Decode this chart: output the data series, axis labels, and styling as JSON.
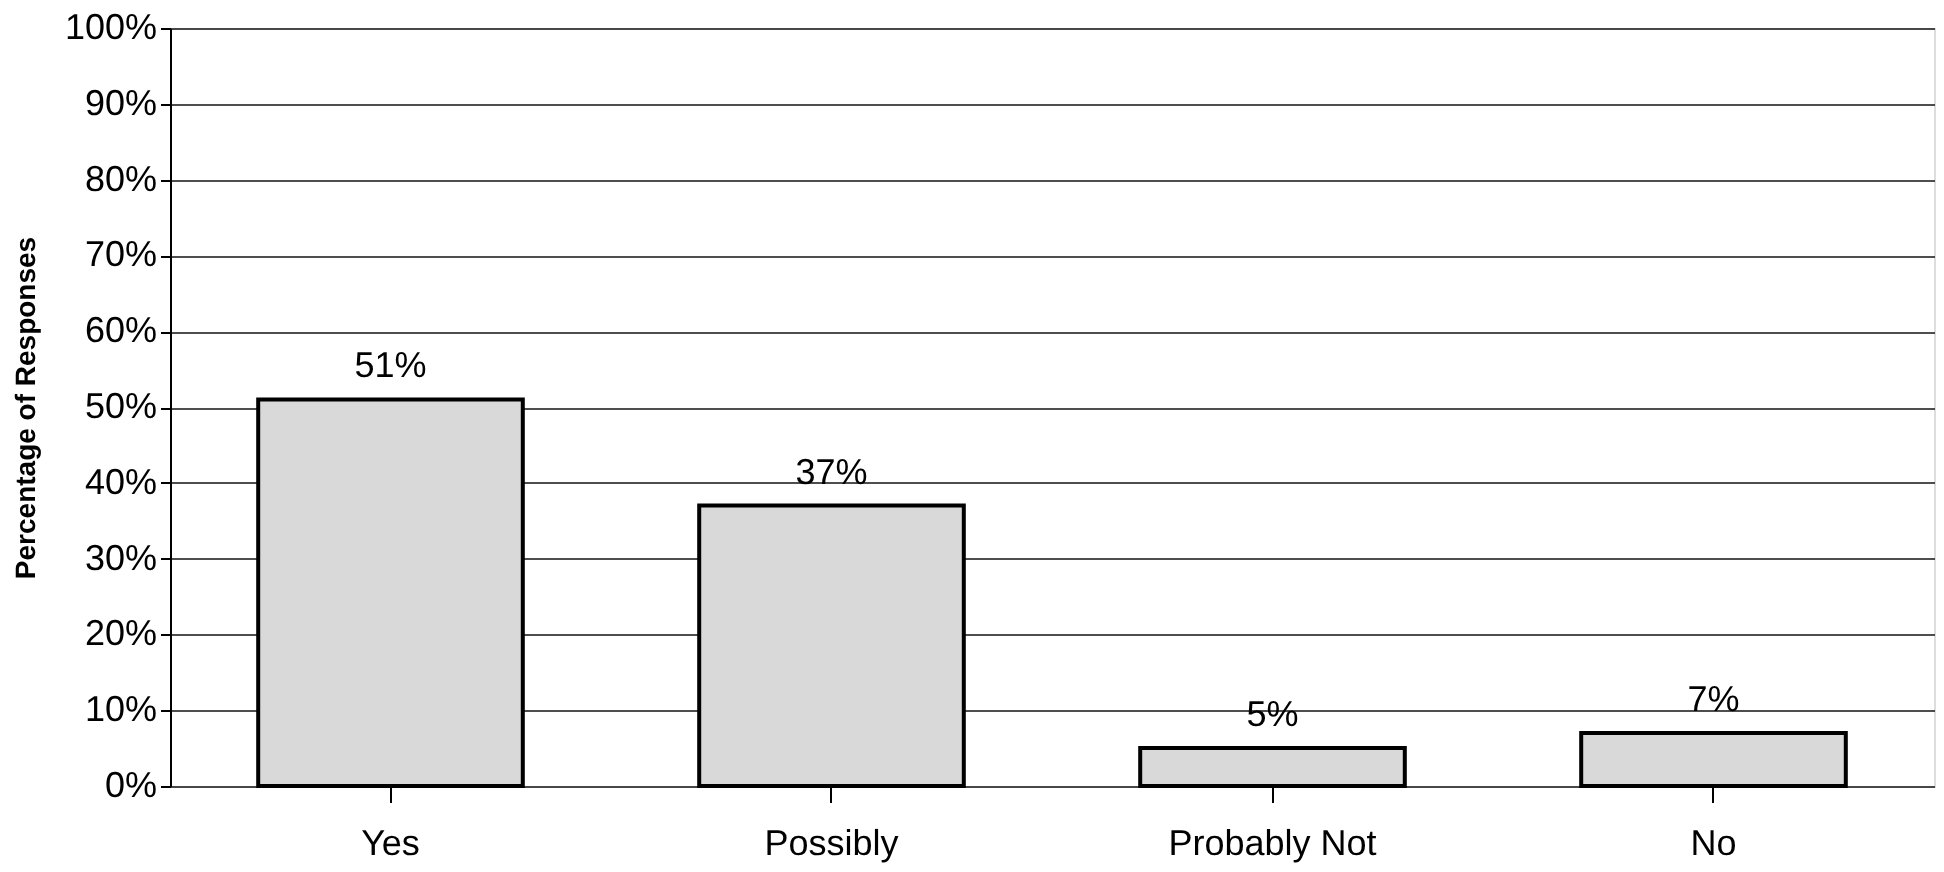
{
  "chart_data": {
    "type": "bar",
    "ylabel": "Percentage of Responses",
    "categories": [
      "Yes",
      "Possibly",
      "Probably Not",
      "No"
    ],
    "values": [
      51,
      37,
      5,
      7
    ],
    "value_labels": [
      "51%",
      "37%",
      "5%",
      "7%"
    ],
    "color": "#d9d9d9",
    "ylim": [
      0,
      100
    ],
    "yticks": [
      {
        "value": 0,
        "label": "0%"
      },
      {
        "value": 10,
        "label": "10%"
      },
      {
        "value": 20,
        "label": "20%"
      },
      {
        "value": 30,
        "label": "30%"
      },
      {
        "value": 40,
        "label": "40%"
      },
      {
        "value": 50,
        "label": "50%"
      },
      {
        "value": 60,
        "label": "60%"
      },
      {
        "value": 70,
        "label": "70%"
      },
      {
        "value": 80,
        "label": "80%"
      },
      {
        "value": 90,
        "label": "90%"
      },
      {
        "value": 100,
        "label": "100%"
      }
    ],
    "grid": "y"
  }
}
